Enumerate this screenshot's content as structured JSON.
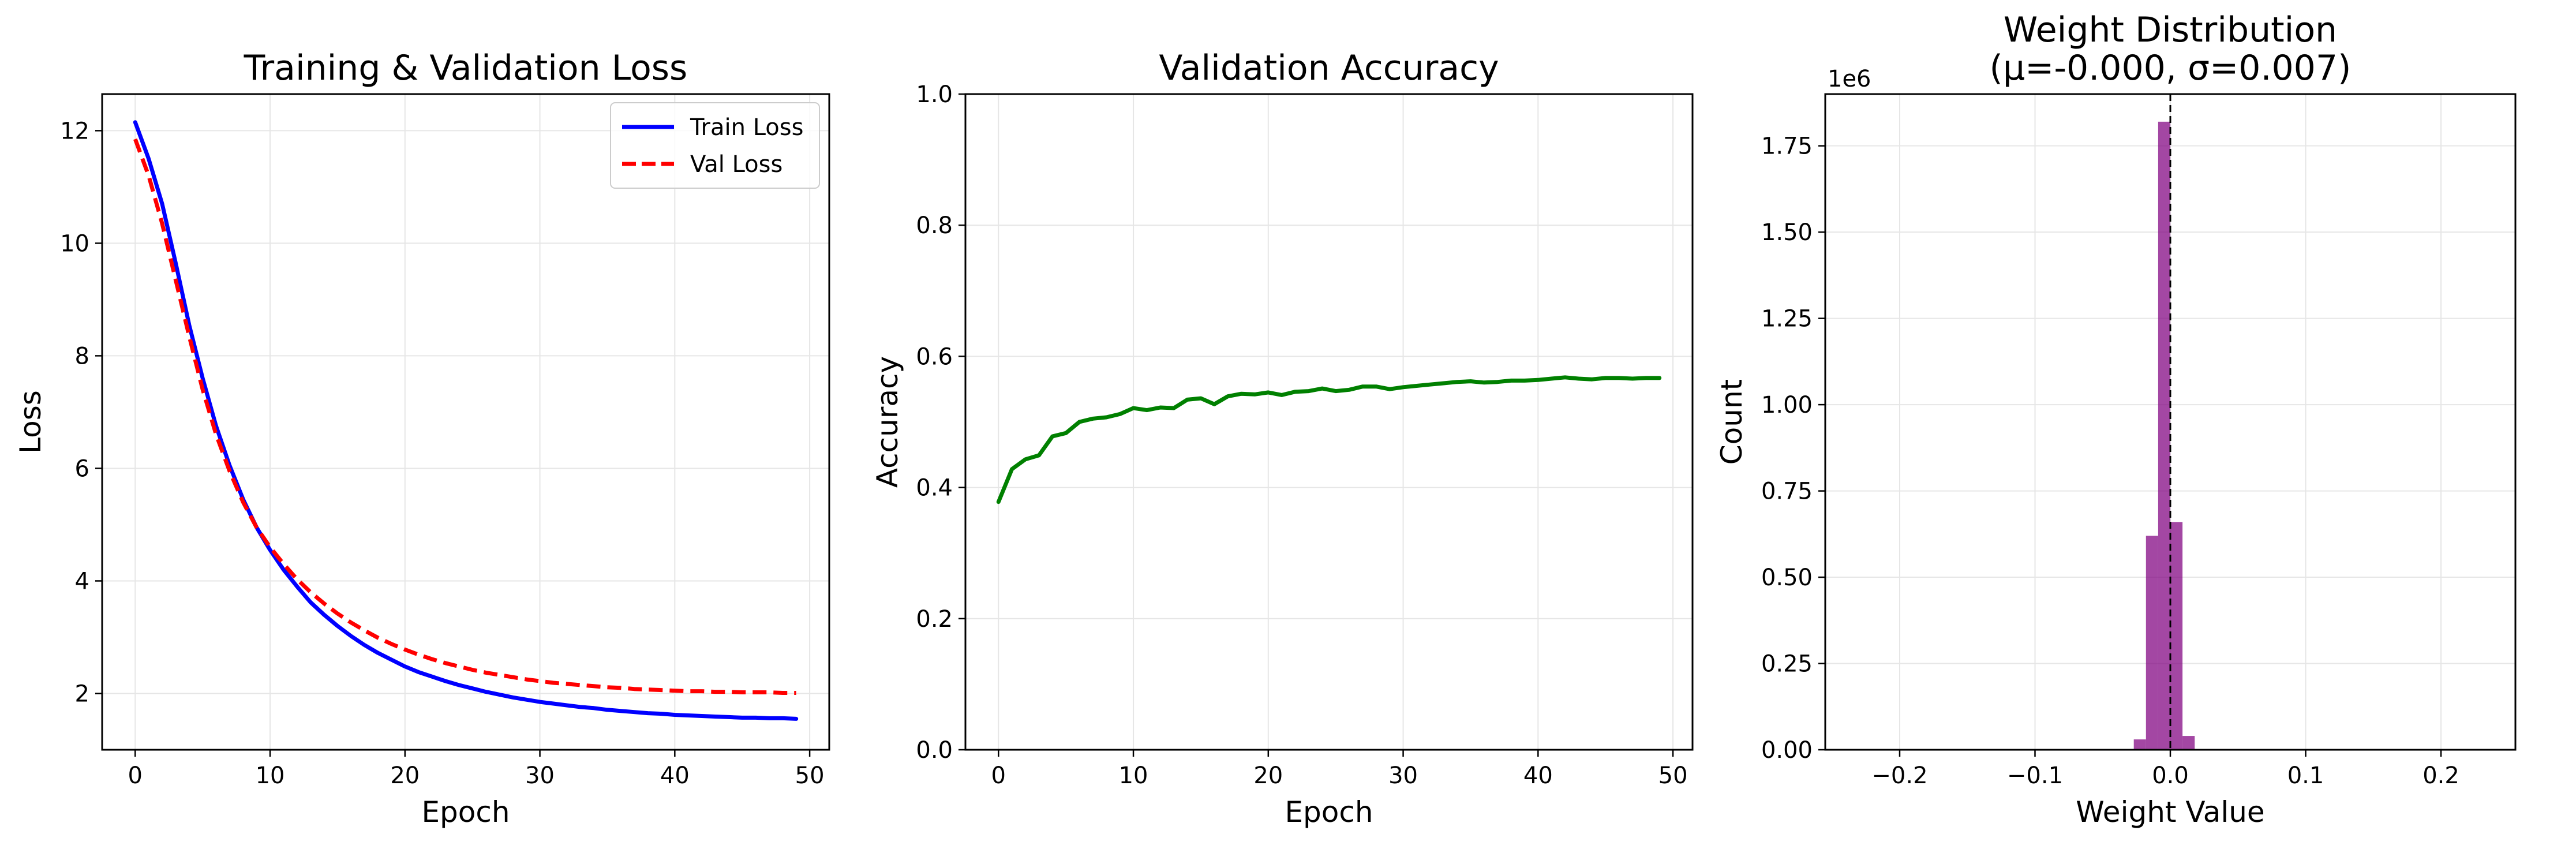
{
  "colors": {
    "train": "#0000ff",
    "val": "#ff0000",
    "accuracy": "#008000",
    "histogram": "#800080",
    "grid": "#e6e6e6",
    "mean_line": "#000000"
  },
  "chart_data": [
    {
      "type": "line",
      "title": "Training & Validation Loss",
      "xlabel": "Epoch",
      "ylabel": "Loss",
      "xlim": [
        -2.45,
        51.45
      ],
      "ylim": [
        1.0,
        12.65
      ],
      "xticks": [
        0,
        10,
        20,
        30,
        40,
        50
      ],
      "yticks": [
        2,
        4,
        6,
        8,
        10,
        12
      ],
      "grid": true,
      "legend_position": "top-right",
      "x": [
        0,
        1,
        2,
        3,
        4,
        5,
        6,
        7,
        8,
        9,
        10,
        11,
        12,
        13,
        14,
        15,
        16,
        17,
        18,
        19,
        20,
        21,
        22,
        23,
        24,
        25,
        26,
        27,
        28,
        29,
        30,
        31,
        32,
        33,
        34,
        35,
        36,
        37,
        38,
        39,
        40,
        41,
        42,
        43,
        44,
        45,
        46,
        47,
        48,
        49
      ],
      "series": [
        {
          "name": "Train Loss",
          "style": "solid",
          "values": [
            12.15,
            11.5,
            10.7,
            9.65,
            8.55,
            7.6,
            6.75,
            6.05,
            5.45,
            4.95,
            4.55,
            4.2,
            3.9,
            3.62,
            3.4,
            3.2,
            3.02,
            2.86,
            2.72,
            2.6,
            2.48,
            2.38,
            2.3,
            2.22,
            2.15,
            2.09,
            2.03,
            1.98,
            1.93,
            1.89,
            1.85,
            1.82,
            1.79,
            1.76,
            1.74,
            1.71,
            1.69,
            1.67,
            1.65,
            1.64,
            1.62,
            1.61,
            1.6,
            1.59,
            1.58,
            1.57,
            1.57,
            1.56,
            1.56,
            1.55
          ]
        },
        {
          "name": "Val Loss",
          "style": "dashed",
          "values": [
            11.85,
            11.2,
            10.35,
            9.35,
            8.35,
            7.4,
            6.6,
            5.95,
            5.4,
            4.95,
            4.6,
            4.3,
            4.03,
            3.8,
            3.6,
            3.42,
            3.26,
            3.12,
            2.99,
            2.88,
            2.78,
            2.69,
            2.61,
            2.54,
            2.48,
            2.42,
            2.37,
            2.33,
            2.29,
            2.25,
            2.22,
            2.19,
            2.17,
            2.15,
            2.13,
            2.11,
            2.1,
            2.08,
            2.07,
            2.06,
            2.05,
            2.04,
            2.04,
            2.03,
            2.03,
            2.02,
            2.02,
            2.02,
            2.01,
            2.01
          ]
        }
      ]
    },
    {
      "type": "line",
      "title": "Validation Accuracy",
      "xlabel": "Epoch",
      "ylabel": "Accuracy",
      "xlim": [
        -2.45,
        51.45
      ],
      "ylim": [
        0.0,
        1.0
      ],
      "xticks": [
        0,
        10,
        20,
        30,
        40,
        50
      ],
      "yticks": [
        0.0,
        0.2,
        0.4,
        0.6,
        0.8,
        1.0
      ],
      "ytick_labels": [
        "0.0",
        "0.2",
        "0.4",
        "0.6",
        "0.8",
        "1.0"
      ],
      "grid": true,
      "x": [
        0,
        1,
        2,
        3,
        4,
        5,
        6,
        7,
        8,
        9,
        10,
        11,
        12,
        13,
        14,
        15,
        16,
        17,
        18,
        19,
        20,
        21,
        22,
        23,
        24,
        25,
        26,
        27,
        28,
        29,
        30,
        31,
        32,
        33,
        34,
        35,
        36,
        37,
        38,
        39,
        40,
        41,
        42,
        43,
        44,
        45,
        46,
        47,
        48,
        49
      ],
      "series": [
        {
          "values": [
            0.378,
            0.428,
            0.443,
            0.449,
            0.478,
            0.483,
            0.5,
            0.505,
            0.507,
            0.512,
            0.521,
            0.518,
            0.522,
            0.521,
            0.534,
            0.536,
            0.527,
            0.539,
            0.543,
            0.542,
            0.545,
            0.541,
            0.546,
            0.547,
            0.551,
            0.547,
            0.549,
            0.554,
            0.554,
            0.55,
            0.553,
            0.555,
            0.557,
            0.559,
            0.561,
            0.562,
            0.56,
            0.561,
            0.563,
            0.563,
            0.564,
            0.566,
            0.568,
            0.566,
            0.565,
            0.567,
            0.567,
            0.566,
            0.567,
            0.567
          ]
        }
      ]
    },
    {
      "type": "bar",
      "title": "Weight Distribution",
      "subtitle": "(μ=-0.000, σ=0.007)",
      "xlabel": "Weight Value",
      "ylabel": "Count",
      "offset_label": "1e6",
      "xlim": [
        -0.255,
        0.255
      ],
      "ylim": [
        0.0,
        1.9
      ],
      "xticks": [
        -0.2,
        -0.1,
        0.0,
        0.1,
        0.2
      ],
      "xtick_labels": [
        "−0.2",
        "−0.1",
        "0.0",
        "0.1",
        "0.2"
      ],
      "yticks": [
        0.0,
        0.25,
        0.5,
        0.75,
        1.0,
        1.25,
        1.5,
        1.75
      ],
      "ytick_labels": [
        "0.00",
        "0.25",
        "0.50",
        "0.75",
        "1.00",
        "1.25",
        "1.50",
        "1.75"
      ],
      "grid": true,
      "mean": 0.0,
      "bins": [
        {
          "x0": -0.027,
          "x1": -0.018,
          "count": 0.03
        },
        {
          "x0": -0.018,
          "x1": -0.009,
          "count": 0.62
        },
        {
          "x0": -0.009,
          "x1": 0.0,
          "count": 1.82
        },
        {
          "x0": 0.0,
          "x1": 0.009,
          "count": 0.66
        },
        {
          "x0": 0.009,
          "x1": 0.018,
          "count": 0.04
        }
      ]
    }
  ]
}
